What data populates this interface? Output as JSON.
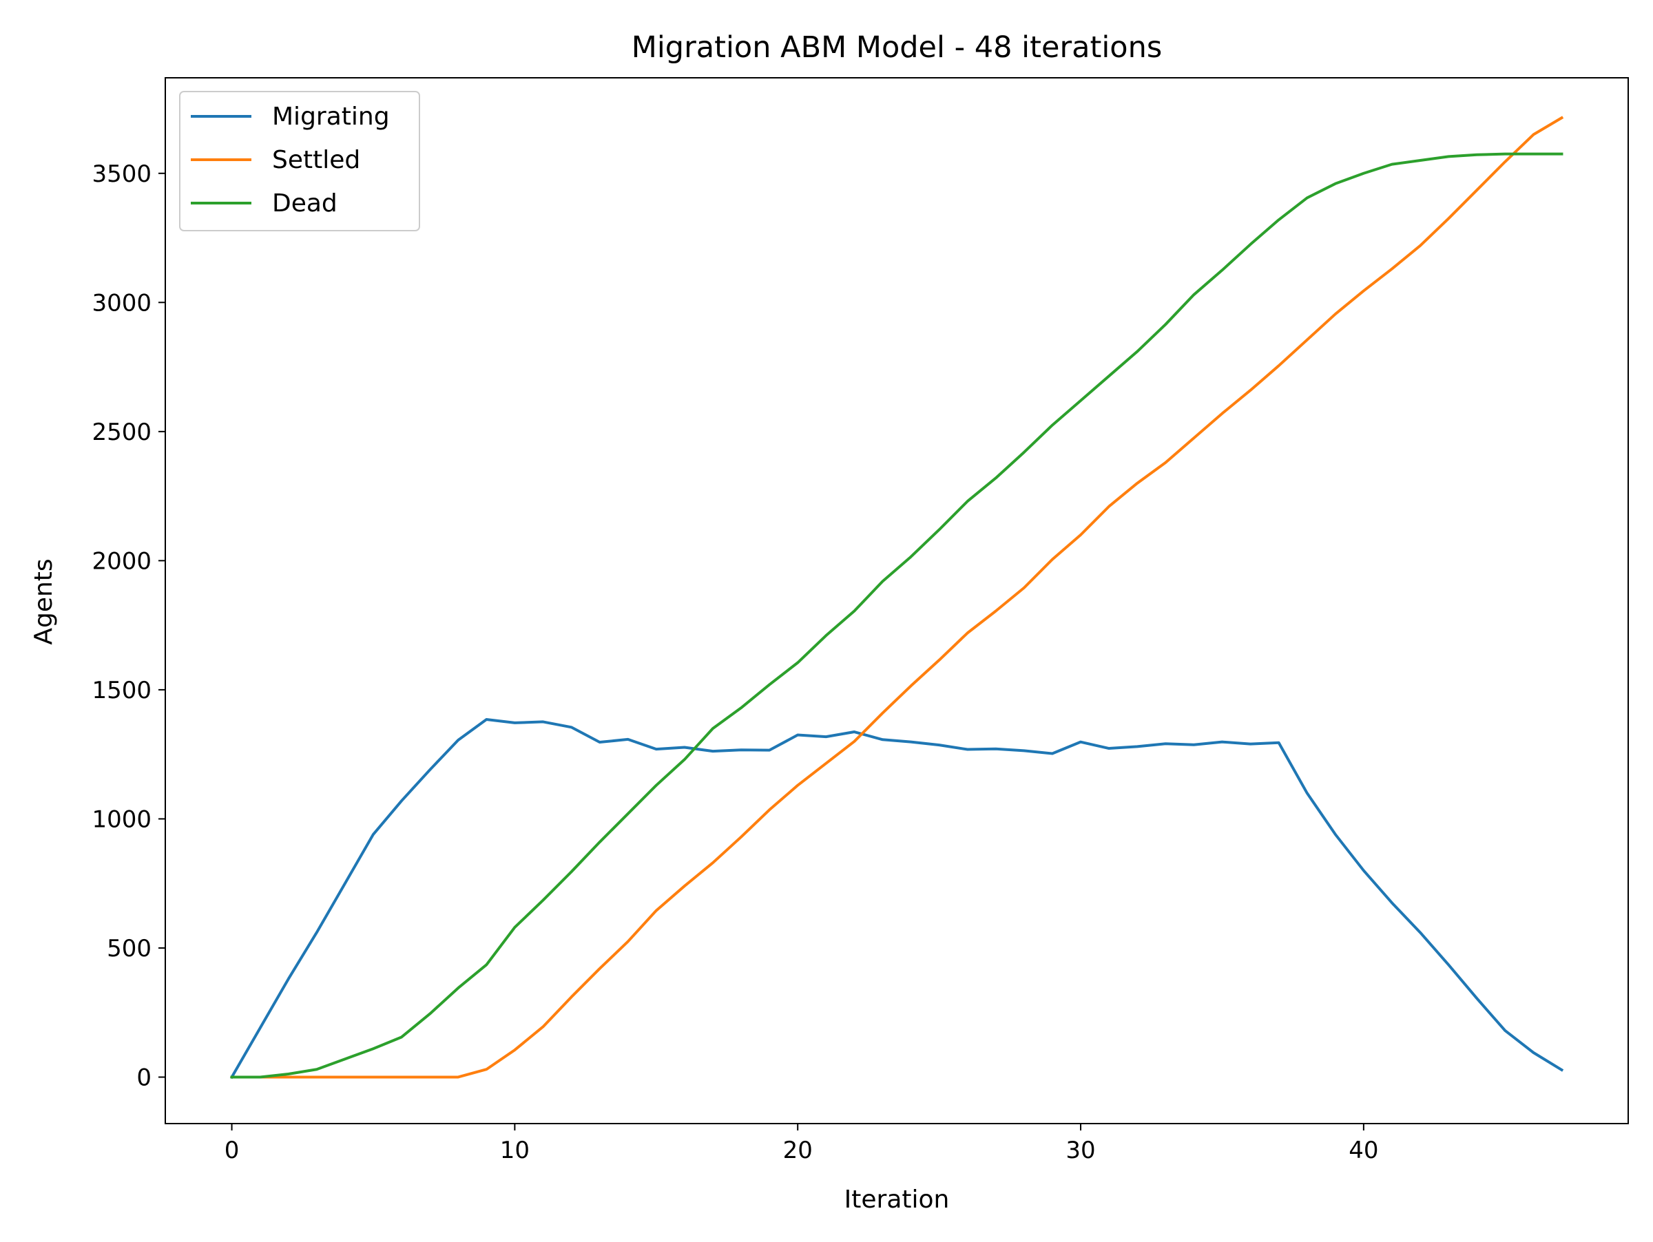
{
  "chart_data": {
    "type": "line",
    "title": "Migration ABM Model - 48 iterations",
    "xlabel": "Iteration",
    "ylabel": "Agents",
    "xlim": [
      -2.35,
      49.35
    ],
    "ylim": [
      -180,
      3870
    ],
    "xticks": [
      0,
      10,
      20,
      30,
      40
    ],
    "yticks": [
      0,
      500,
      1000,
      1500,
      2000,
      2500,
      3000,
      3500
    ],
    "grid": false,
    "legend_position": "top-left",
    "x": [
      0,
      1,
      2,
      3,
      4,
      5,
      6,
      7,
      8,
      9,
      10,
      11,
      12,
      13,
      14,
      15,
      16,
      17,
      18,
      19,
      20,
      21,
      22,
      23,
      24,
      25,
      26,
      27,
      28,
      29,
      30,
      31,
      32,
      33,
      34,
      35,
      36,
      37,
      38,
      39,
      40,
      41,
      42,
      43,
      44,
      45,
      46,
      47
    ],
    "series": [
      {
        "name": "Migrating",
        "color": "#1f77b4",
        "values": [
          0,
          190,
          380,
          560,
          750,
          940,
          1070,
          1190,
          1305,
          1385,
          1372,
          1376,
          1355,
          1297,
          1308,
          1270,
          1277,
          1262,
          1267,
          1266,
          1325,
          1318,
          1337,
          1307,
          1298,
          1286,
          1269,
          1271,
          1264,
          1253,
          1298,
          1273,
          1280,
          1291,
          1287,
          1298,
          1290,
          1295,
          1100,
          940,
          800,
          675,
          560,
          435,
          305,
          180,
          95,
          28
        ]
      },
      {
        "name": "Settled",
        "color": "#ff7f0e",
        "values": [
          0,
          0,
          0,
          0,
          0,
          0,
          0,
          0,
          0,
          30,
          105,
          195,
          310,
          420,
          525,
          645,
          740,
          830,
          930,
          1035,
          1130,
          1215,
          1300,
          1410,
          1515,
          1615,
          1720,
          1805,
          1895,
          2005,
          2100,
          2210,
          2300,
          2380,
          2475,
          2570,
          2660,
          2755,
          2855,
          2955,
          3045,
          3130,
          3220,
          3325,
          3435,
          3545,
          3650,
          3715
        ]
      },
      {
        "name": "Dead",
        "color": "#2ca02c",
        "values": [
          0,
          0,
          12,
          30,
          70,
          110,
          155,
          245,
          345,
          435,
          580,
          685,
          795,
          910,
          1020,
          1130,
          1230,
          1350,
          1430,
          1520,
          1605,
          1710,
          1805,
          1920,
          2015,
          2120,
          2230,
          2320,
          2420,
          2525,
          2620,
          2715,
          2810,
          2915,
          3030,
          3125,
          3225,
          3320,
          3405,
          3460,
          3500,
          3535,
          3550,
          3565,
          3572,
          3575,
          3575,
          3575
        ]
      }
    ]
  }
}
